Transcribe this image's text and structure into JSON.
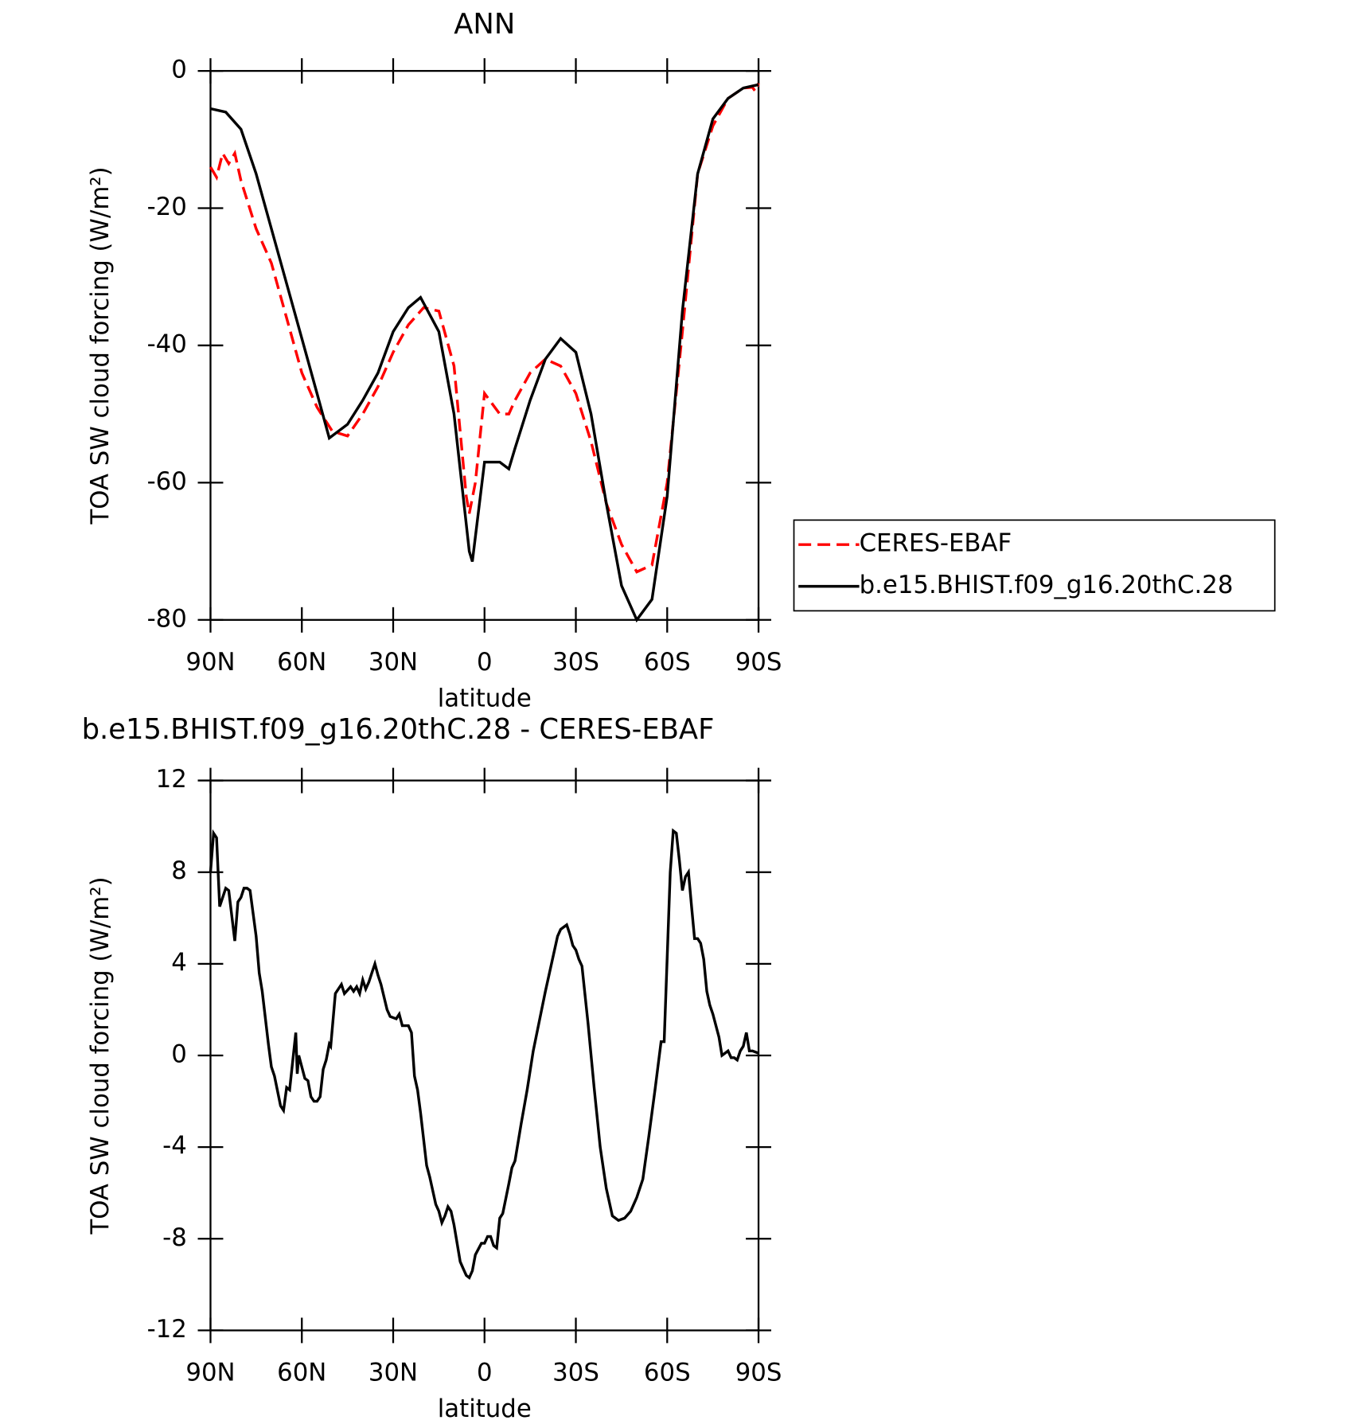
{
  "chart_data": [
    {
      "type": "line",
      "title": "ANN",
      "xlabel": "latitude",
      "ylabel": "TOA SW cloud forcing (W/m²)",
      "xlim": [
        90,
        -90
      ],
      "xticks": [
        {
          "value": 90,
          "label": "90N"
        },
        {
          "value": 60,
          "label": "60N"
        },
        {
          "value": 30,
          "label": "30N"
        },
        0,
        {
          "value": -30,
          "label": "30S"
        },
        {
          "value": -60,
          "label": "60S"
        },
        {
          "value": -90,
          "label": "90S"
        }
      ],
      "ylim": [
        -80,
        0
      ],
      "yticks": [
        -80,
        -60,
        -40,
        -20,
        0
      ],
      "legend": "outside-right",
      "series": [
        {
          "name": "CERES-EBAF",
          "color": "#ff0000",
          "linestyle": "dashed",
          "x": [
            90,
            88,
            86,
            84,
            82,
            80,
            75,
            70,
            65,
            60,
            55,
            50,
            45,
            40,
            35,
            30,
            25,
            20,
            15,
            10,
            6,
            5,
            3,
            0,
            -5,
            -8,
            -10,
            -15,
            -20,
            -25,
            -30,
            -35,
            -40,
            -45,
            -50,
            -55,
            -60,
            -65,
            -70,
            -75,
            -80,
            -85,
            -88,
            -89,
            -90
          ],
          "values": [
            -14,
            -15.5,
            -12,
            -13.5,
            -12,
            -16,
            -23,
            -28,
            -36,
            -44,
            -49,
            -52.5,
            -53.2,
            -50,
            -46,
            -41,
            -37,
            -34.5,
            -35,
            -43,
            -62,
            -64.5,
            -60,
            -47,
            -50,
            -50,
            -48,
            -44,
            -42,
            -43,
            -47,
            -54,
            -63,
            -69,
            -73,
            -72,
            -60,
            -38,
            -15,
            -8,
            -4,
            -2.5,
            -2.4,
            -3,
            -1.8
          ]
        },
        {
          "name": "b.e15.BHIST.f09_g16.20thC.28",
          "color": "#000000",
          "linestyle": "solid",
          "x": [
            90,
            85,
            80,
            75,
            70,
            65,
            60,
            55,
            51,
            45,
            40,
            35,
            30,
            25,
            21,
            15,
            10,
            5,
            4,
            0,
            -5,
            -8,
            -10,
            -15,
            -20,
            -25,
            -30,
            -35,
            -40,
            -45,
            -50,
            -55,
            -60,
            -65,
            -70,
            -75,
            -80,
            -85,
            -90
          ],
          "values": [
            -5.5,
            -6,
            -8.5,
            -15,
            -23,
            -31,
            -39,
            -47,
            -53.5,
            -51.5,
            -48,
            -44,
            -38,
            -34.5,
            -33,
            -38,
            -50,
            -70,
            -71.5,
            -57,
            -57,
            -58,
            -55,
            -48,
            -42,
            -39,
            -41,
            -50,
            -63,
            -75,
            -80,
            -77,
            -62,
            -35,
            -15,
            -7,
            -4,
            -2.5,
            -2
          ]
        }
      ]
    },
    {
      "type": "line",
      "title": "b.e15.BHIST.f09_g16.20thC.28 - CERES-EBAF",
      "xlabel": "latitude",
      "ylabel": "TOA SW cloud forcing (W/m²)",
      "xlim": [
        90,
        -90
      ],
      "xticks": [
        {
          "value": 90,
          "label": "90N"
        },
        {
          "value": 60,
          "label": "60N"
        },
        {
          "value": 30,
          "label": "30N"
        },
        0,
        {
          "value": -30,
          "label": "30S"
        },
        {
          "value": -60,
          "label": "60S"
        },
        {
          "value": -90,
          "label": "90S"
        }
      ],
      "ylim": [
        -12,
        12
      ],
      "yticks": [
        -12,
        -8,
        -4,
        0,
        4,
        8,
        12
      ],
      "series": [
        {
          "color": "#000000",
          "linestyle": "solid",
          "x": [
            90,
            89,
            88,
            87,
            85,
            84,
            82,
            81,
            80,
            79,
            78,
            77,
            75,
            74,
            73,
            71,
            70,
            69,
            67,
            66,
            65,
            64,
            62,
            61.5,
            61,
            59,
            58,
            57,
            56,
            55,
            54,
            53,
            52,
            51,
            50.5,
            49,
            47,
            46,
            44,
            43,
            42,
            41,
            40,
            39,
            38,
            37,
            36,
            35,
            34,
            32,
            31,
            29,
            28,
            27,
            25,
            24,
            23,
            22,
            21,
            19,
            18,
            16,
            15,
            14,
            13,
            12,
            11,
            10,
            9,
            8,
            7,
            6,
            5,
            4,
            3,
            1,
            0,
            -1,
            -2,
            -3,
            -4,
            -5,
            -6,
            -8,
            -9,
            -10,
            -12,
            -14,
            -16,
            -18,
            -20,
            -22,
            -24,
            -25,
            -26,
            -27,
            -28,
            -29,
            -30,
            -31,
            -32,
            -34,
            -36,
            -38,
            -40,
            -42,
            -44,
            -46,
            -48,
            -50,
            -52,
            -54,
            -56,
            -58,
            -59,
            -61,
            -62,
            -63,
            -64,
            -65,
            -66,
            -67,
            -68,
            -69,
            -70,
            -71,
            -72,
            -73,
            -74,
            -75,
            -77,
            -78,
            -79,
            -80,
            -81,
            -82,
            -83,
            -84,
            -85,
            -86,
            -87,
            -88,
            -90
          ],
          "values": [
            8,
            9.7,
            9.5,
            6.5,
            7.3,
            7.2,
            5,
            6.7,
            6.9,
            7.3,
            7.3,
            7.2,
            5.2,
            3.6,
            2.8,
            0.5,
            -0.5,
            -0.9,
            -2.2,
            -2.4,
            -1.4,
            -1.5,
            1,
            -0.8,
            0,
            -1,
            -1.1,
            -1.8,
            -2,
            -2,
            -1.8,
            -0.6,
            -0.2,
            0.5,
            0.4,
            2.7,
            3.1,
            2.7,
            3.0,
            2.8,
            3,
            2.7,
            3.3,
            2.9,
            3.2,
            3.6,
            4,
            3.5,
            3.1,
            2.0,
            1.7,
            1.6,
            1.8,
            1.3,
            1.3,
            1,
            -0.9,
            -1.5,
            -2.5,
            -4.8,
            -5.3,
            -6.5,
            -6.8,
            -7.3,
            -7,
            -6.6,
            -6.8,
            -7.4,
            -8.2,
            -9.0,
            -9.3,
            -9.6,
            -9.7,
            -9.4,
            -8.7,
            -8.2,
            -8.2,
            -7.9,
            -7.9,
            -8.3,
            -8.4,
            -7.1,
            -6.9,
            -5.6,
            -4.9,
            -4.6,
            -3.0,
            -1.5,
            0.2,
            1.5,
            2.8,
            4,
            5.2,
            5.5,
            5.6,
            5.7,
            5.3,
            4.8,
            4.6,
            4.2,
            3.9,
            1.4,
            -1.4,
            -4,
            -5.8,
            -7,
            -7.2,
            -7.1,
            -6.8,
            -6.2,
            -5.4,
            -3.5,
            -1.5,
            0.6,
            0.6,
            8,
            9.8,
            9.7,
            8.5,
            7.2,
            7.8,
            8.0,
            6.5,
            5.1,
            5.1,
            4.9,
            4.2,
            2.8,
            2.2,
            1.8,
            0.8,
            0,
            0.1,
            0.2,
            -0.1,
            -0.1,
            -0.2,
            0.2,
            0.4,
            1.0,
            0.2,
            0.2,
            0.1
          ]
        }
      ]
    }
  ]
}
